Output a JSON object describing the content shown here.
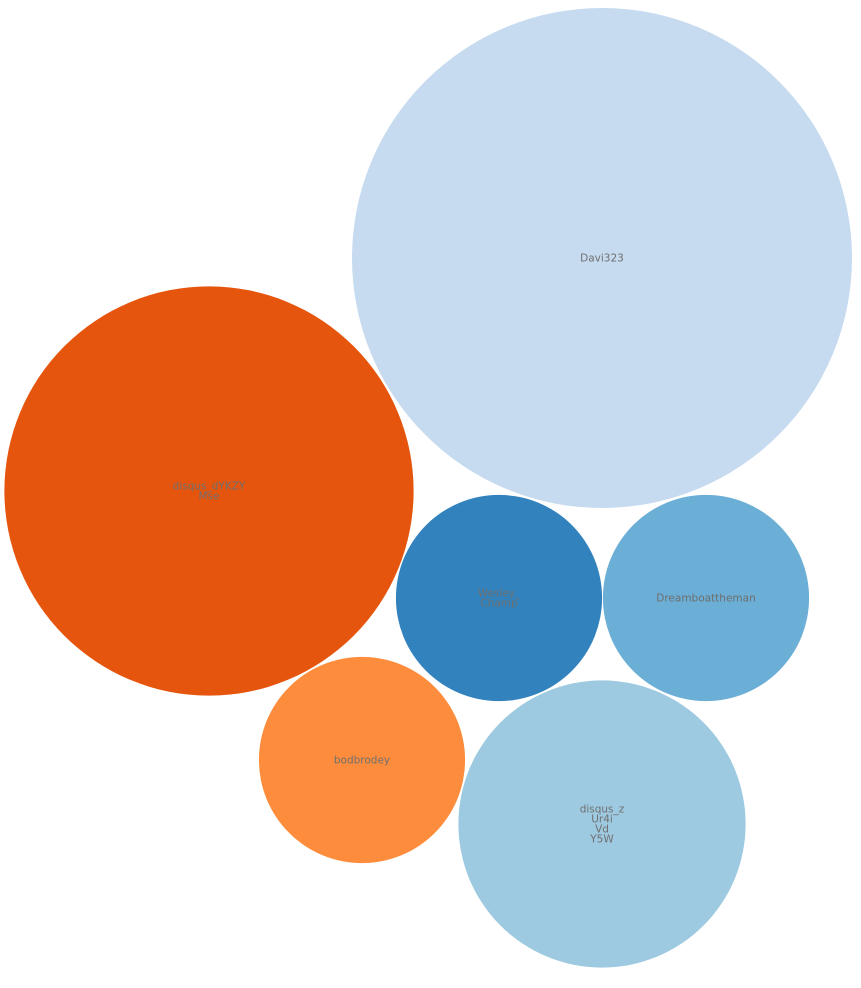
{
  "chart_data": {
    "type": "bubble",
    "title": "",
    "bubbles": [
      {
        "name": "Davi323",
        "label_lines": [
          "Davi323"
        ],
        "value": 100,
        "color": "#c6dbef"
      },
      {
        "name": "disqus_dYKZY Mse",
        "label_lines": [
          "disqus_dYKZY",
          "Mse"
        ],
        "value": 67,
        "color": "#e6550d"
      },
      {
        "name": "disqus_z Ur4i Vd Y5W",
        "label_lines": [
          "disqus_z",
          "Ur4i",
          "Vd",
          "Y5W"
        ],
        "value": 33,
        "color": "#9ecae1"
      },
      {
        "name": "Wesley_Champ",
        "label_lines": [
          "Wesley_",
          "Champ"
        ],
        "value": 17,
        "color": "#3182bd"
      },
      {
        "name": "Dreamboattheman",
        "label_lines": [
          "Dreamboattheman"
        ],
        "value": 17,
        "color": "#6baed6"
      },
      {
        "name": "bodbrodey",
        "label_lines": [
          "bodbrodey"
        ],
        "value": 17,
        "color": "#fd8d3c"
      }
    ]
  }
}
